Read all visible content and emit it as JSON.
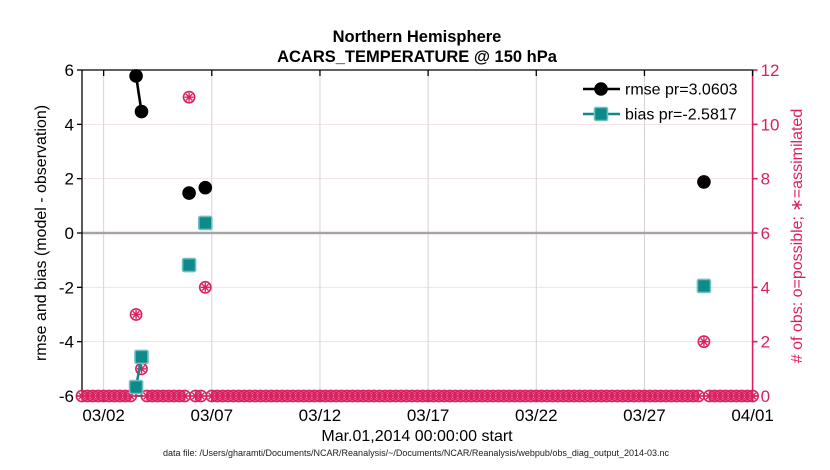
{
  "title": {
    "line1": "Northern Hemisphere",
    "line2": "ACARS_TEMPERATURE @ 150 hPa"
  },
  "axes": {
    "xlabel": "Mar.01,2014 00:00:00 start",
    "ylabel_left": "rmse and bias (model - observation)",
    "ylabel_right": "# of obs: o=possible; ∗=assimilated"
  },
  "legend": [
    {
      "label": "rmse pr=3.0603",
      "marker": "filled-circle",
      "color_key": "rmse"
    },
    {
      "label": "bias pr=-2.5817",
      "marker": "filled-square",
      "color_key": "bias"
    }
  ],
  "footer": "data file: /Users/gharamti/Documents/NCAR/Reanalysis/~/Documents/NCAR/Reanalysis/webpub/obs_diag_output_2014-03.nc",
  "colors": {
    "rmse": "#000000",
    "bias": "#0E8A8A",
    "bias_edge": "#6FBFBF",
    "obs": "#DB2061",
    "grid_h": "#F6DFE9",
    "grid_v": "#D4D4D4",
    "zero_line": "#A9A1A6",
    "axis": "#000000"
  },
  "chart_data": {
    "type": "line",
    "title": "Northern Hemisphere / ACARS_TEMPERATURE @ 150 hPa",
    "xlabel": "Mar.01,2014 00:00:00 start",
    "x_axis": {
      "range_days": [
        1,
        32
      ],
      "ticks": [
        {
          "day": 2,
          "label": "03/02"
        },
        {
          "day": 7,
          "label": "03/07"
        },
        {
          "day": 12,
          "label": "03/12"
        },
        {
          "day": 17,
          "label": "03/17"
        },
        {
          "day": 22,
          "label": "03/22"
        },
        {
          "day": 27,
          "label": "03/27"
        },
        {
          "day": 32,
          "label": "04/01"
        }
      ]
    },
    "y_axis_left": {
      "label": "rmse and bias (model - observation)",
      "lim": [
        -6,
        6
      ],
      "ticks": [
        6,
        4,
        2,
        0,
        -2,
        -4,
        -6
      ]
    },
    "y_axis_right": {
      "label": "# of obs: o=possible; ∗=assimilated",
      "lim": [
        0,
        12
      ],
      "ticks": [
        12,
        10,
        8,
        6,
        4,
        2,
        0
      ]
    },
    "grid": "on",
    "legend_position": "top-right",
    "series": [
      {
        "name": "rmse pr=3.0603",
        "axis": "left",
        "marker": "filled-circle",
        "color_key": "rmse",
        "segments": [
          [
            [
              3.5,
              5.78
            ],
            [
              3.75,
              4.47
            ]
          ],
          [
            [
              5.95,
              1.47
            ]
          ],
          [
            [
              6.7,
              1.67
            ]
          ],
          [
            [
              29.75,
              1.88
            ]
          ]
        ]
      },
      {
        "name": "bias pr=-2.5817",
        "axis": "left",
        "marker": "filled-square",
        "color_key": "bias",
        "segments": [
          [
            [
              3.5,
              -5.67
            ],
            [
              3.75,
              -4.56
            ]
          ],
          [
            [
              5.95,
              -1.18
            ]
          ],
          [
            [
              6.7,
              0.37
            ]
          ],
          [
            [
              29.75,
              -1.95
            ]
          ]
        ]
      }
    ],
    "obs_counts": {
      "axis": "right",
      "marker": "circle-asterisk",
      "color_key": "obs",
      "points": [
        [
          3.5,
          3
        ],
        [
          3.75,
          1
        ],
        [
          5.95,
          11
        ],
        [
          6.7,
          4
        ],
        [
          29.75,
          2
        ]
      ],
      "zero_row": {
        "start_day": 1.0,
        "end_day": 32.0,
        "step_days": 0.25,
        "skip_days": [
          3.5,
          3.75,
          5.95,
          6.7,
          29.75
        ]
      }
    }
  }
}
